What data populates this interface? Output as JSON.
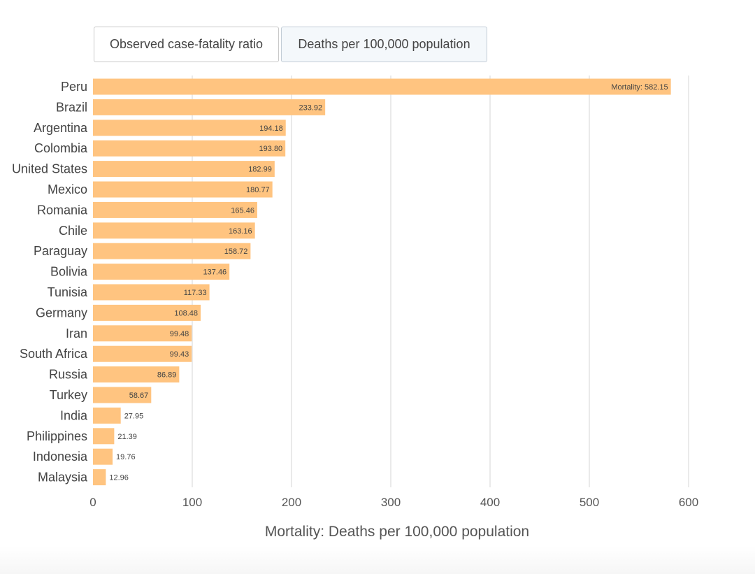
{
  "tabs": {
    "cfr_label": "Observed case-fatality ratio",
    "deaths_label": "Deaths per 100,000 population",
    "active": "deaths"
  },
  "chart_data": {
    "type": "bar",
    "orientation": "horizontal",
    "categories": [
      "Peru",
      "Brazil",
      "Argentina",
      "Colombia",
      "United States",
      "Mexico",
      "Romania",
      "Chile",
      "Paraguay",
      "Bolivia",
      "Tunisia",
      "Germany",
      "Iran",
      "South Africa",
      "Russia",
      "Turkey",
      "India",
      "Philippines",
      "Indonesia",
      "Malaysia"
    ],
    "values": [
      582.15,
      233.92,
      194.18,
      193.8,
      182.99,
      180.77,
      165.46,
      163.16,
      158.72,
      137.46,
      117.33,
      108.48,
      99.48,
      99.43,
      86.89,
      58.67,
      27.95,
      21.39,
      19.76,
      12.96
    ],
    "value_labels": [
      "Mortality: 582.15",
      "233.92",
      "194.18",
      "193.80",
      "182.99",
      "180.77",
      "165.46",
      "163.16",
      "158.72",
      "137.46",
      "117.33",
      "108.48",
      "99.48",
      "99.43",
      "86.89",
      "58.67",
      "27.95",
      "21.39",
      "19.76",
      "12.96"
    ],
    "xlabel": "Mortality: Deaths per 100,000 population",
    "xlim": [
      0,
      600
    ],
    "xticks": [
      0,
      100,
      200,
      300,
      400,
      500,
      600
    ],
    "grid": true,
    "bar_color": "#ffc480",
    "grid_color": "#d6d6d6"
  }
}
